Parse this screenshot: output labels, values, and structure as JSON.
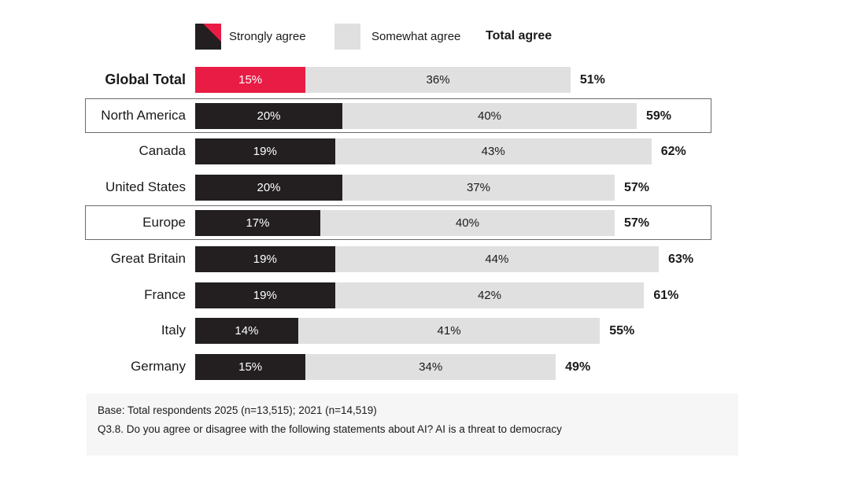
{
  "legend": {
    "strong_label": "Strongly agree",
    "somewhat_label": "Somewhat agree",
    "total_label": "Total agree"
  },
  "colors": {
    "strong": "#231f20",
    "somewhat": "#e0e0e0",
    "highlight": "#e81c44",
    "strong_text": "#ffffff",
    "somewhat_text": "#1a1a1a"
  },
  "chart_data": {
    "type": "bar",
    "orientation": "horizontal",
    "stacked": true,
    "categories": [
      "Global Total",
      "North America",
      "Canada",
      "United States",
      "Europe",
      "Great Britain",
      "France",
      "Italy",
      "Germany"
    ],
    "series": [
      {
        "name": "Strongly agree",
        "values": [
          15,
          20,
          19,
          20,
          17,
          19,
          19,
          14,
          15
        ]
      },
      {
        "name": "Somewhat agree",
        "values": [
          36,
          40,
          43,
          37,
          40,
          44,
          42,
          41,
          34
        ]
      }
    ],
    "totals": [
      51,
      59,
      62,
      57,
      57,
      63,
      61,
      55,
      49
    ],
    "total_series_name": "Total agree",
    "highlighted_categories": [
      "Global Total"
    ],
    "boxed_categories": [
      "North America",
      "Europe"
    ],
    "bold_categories": [
      "Global Total"
    ],
    "value_suffix": "%",
    "legend_position": "top",
    "grid": false
  },
  "footnote": {
    "base": "Base: Total respondents 2025 (n=13,515); 2021 (n=14,519)",
    "question": "Q3.8. Do you agree or disagree with the following statements about AI? AI is a threat to democracy"
  }
}
